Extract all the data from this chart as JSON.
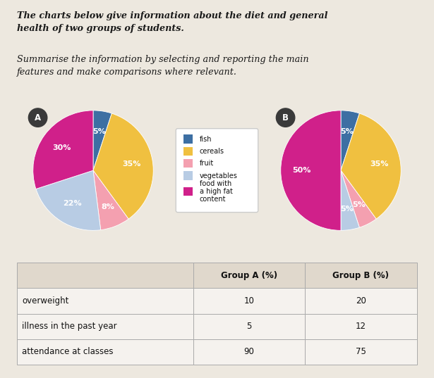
{
  "title_line1": "The charts below give information about the diet and general",
  "title_line2": "health of two groups of students.",
  "subtitle_line1": "Summarise the information by selecting and reporting the main",
  "subtitle_line2": "features and make comparisons where relevant.",
  "pie_A": {
    "label": "A",
    "values": [
      5,
      35,
      8,
      22,
      30
    ],
    "colors": [
      "#3d6fa3",
      "#f0c040",
      "#f4a0b0",
      "#b8cce4",
      "#d0208a"
    ],
    "pct_labels": [
      "5%",
      "35%",
      "8%",
      "22%",
      "30%"
    ],
    "startangle": 90
  },
  "pie_B": {
    "label": "B",
    "values": [
      5,
      35,
      5,
      5,
      50
    ],
    "colors": [
      "#3d6fa3",
      "#f0c040",
      "#f4a0b0",
      "#b8cce4",
      "#d0208a"
    ],
    "pct_labels": [
      "5%",
      "35%",
      "5%",
      "5%",
      "50%"
    ],
    "startangle": 90
  },
  "legend_labels": [
    "fish",
    "cereals",
    "fruit",
    "vegetables",
    "food with\na high fat\ncontent"
  ],
  "legend_colors": [
    "#3d6fa3",
    "#f0c040",
    "#f4a0b0",
    "#b8cce4",
    "#d0208a"
  ],
  "table_headers": [
    "",
    "Group A (%)",
    "Group B (%)"
  ],
  "table_rows": [
    [
      "overweight",
      "10",
      "20"
    ],
    [
      "illness in the past year",
      "5",
      "12"
    ],
    [
      "attendance at classes",
      "90",
      "75"
    ]
  ],
  "bg_color": "#ede8df",
  "table_header_bg": "#e0d8cc",
  "table_row_bg": "#f5f2ee",
  "table_border_color": "#aaaaaa"
}
